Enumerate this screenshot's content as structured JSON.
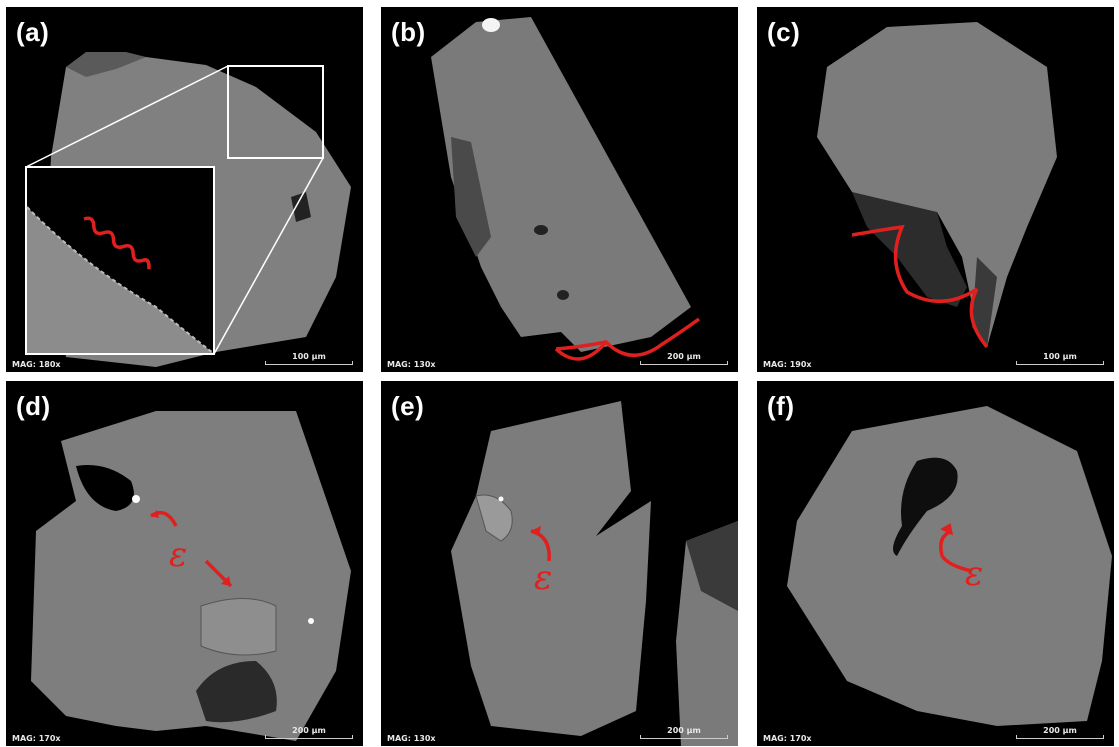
{
  "panels": [
    {
      "id": "a",
      "letter": "(a)",
      "mag": "MAG: 180x",
      "scale": "100 µm"
    },
    {
      "id": "b",
      "letter": "(b)",
      "mag": "MAG: 130x",
      "scale": "200 µm"
    },
    {
      "id": "c",
      "letter": "(c)",
      "mag": "MAG: 190x",
      "scale": "100 µm"
    },
    {
      "id": "d",
      "letter": "(d)",
      "mag": "MAG: 170x",
      "scale": "200 µm",
      "annotation": "ε"
    },
    {
      "id": "e",
      "letter": "(e)",
      "mag": "MAG: 130x",
      "scale": "200 µm",
      "annotation": "ε"
    },
    {
      "id": "f",
      "letter": "(f)",
      "mag": "MAG: 170x",
      "scale": "200 µm",
      "annotation": "ε"
    }
  ],
  "colors": {
    "background": "#000000",
    "crystal": "#7d7d7d",
    "annotation": "#e0201e",
    "text": "#ffffff"
  }
}
